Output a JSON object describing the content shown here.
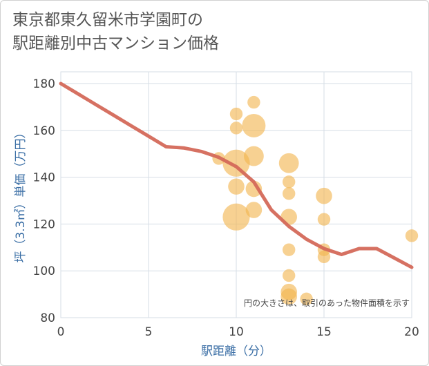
{
  "chart_data": {
    "type": "scatter",
    "title_lines": [
      "東京都東久留米市学園町の",
      "駅距離別中古マンション価格"
    ],
    "xlabel": "駅距離（分）",
    "ylabel": "坪（3.3㎡）単価（万円）",
    "xlim": [
      0,
      20
    ],
    "ylim": [
      80,
      185
    ],
    "x_ticks": [
      0,
      5,
      10,
      15,
      20
    ],
    "y_ticks": [
      80,
      100,
      120,
      140,
      160,
      180
    ],
    "grid": true,
    "note": "円の大きさは、取引のあった物件面積を示す",
    "colors": {
      "bubble": "#f2b44f",
      "line": "#d4695a",
      "grid": "#d6dde6",
      "axis_text": "#3a6ea5"
    },
    "bubbles": [
      {
        "x": 9,
        "y": 148,
        "size": 2
      },
      {
        "x": 10,
        "y": 167,
        "size": 2
      },
      {
        "x": 10,
        "y": 161,
        "size": 2
      },
      {
        "x": 10,
        "y": 146,
        "size": 6
      },
      {
        "x": 10,
        "y": 136,
        "size": 3
      },
      {
        "x": 10,
        "y": 123,
        "size": 6
      },
      {
        "x": 11,
        "y": 172,
        "size": 2
      },
      {
        "x": 11,
        "y": 162,
        "size": 5
      },
      {
        "x": 11,
        "y": 149,
        "size": 4
      },
      {
        "x": 11,
        "y": 135,
        "size": 3
      },
      {
        "x": 11,
        "y": 126,
        "size": 3
      },
      {
        "x": 13,
        "y": 146,
        "size": 4
      },
      {
        "x": 13,
        "y": 138,
        "size": 2
      },
      {
        "x": 13,
        "y": 133,
        "size": 2
      },
      {
        "x": 13,
        "y": 123,
        "size": 3
      },
      {
        "x": 13,
        "y": 109,
        "size": 2
      },
      {
        "x": 13,
        "y": 98,
        "size": 2
      },
      {
        "x": 13,
        "y": 91,
        "size": 3
      },
      {
        "x": 13,
        "y": 89,
        "size": 3
      },
      {
        "x": 14,
        "y": 88,
        "size": 2
      },
      {
        "x": 15,
        "y": 132,
        "size": 3
      },
      {
        "x": 15,
        "y": 122,
        "size": 2
      },
      {
        "x": 15,
        "y": 109,
        "size": 2
      },
      {
        "x": 15,
        "y": 106,
        "size": 2
      },
      {
        "x": 20,
        "y": 115,
        "size": 2
      }
    ],
    "trend": {
      "x": [
        0,
        1,
        2,
        3,
        4,
        5,
        6,
        7,
        8,
        9,
        10,
        11,
        12,
        13,
        14,
        15,
        16,
        17,
        18,
        19,
        20
      ],
      "y": [
        180,
        175.5,
        171,
        166.5,
        162,
        157.5,
        153,
        152.5,
        151,
        148.5,
        144.5,
        138,
        126,
        119,
        113.5,
        109.5,
        107,
        109.5,
        109.5,
        105.5,
        101.5
      ]
    }
  }
}
